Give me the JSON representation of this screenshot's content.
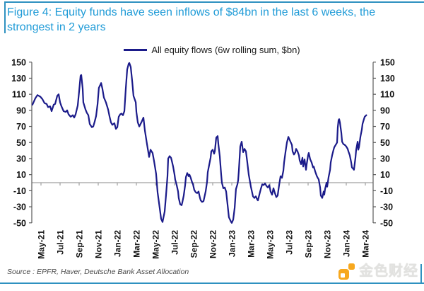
{
  "header": {
    "title": "Figure 4: Equity funds have seen inflows of $84bn in the last 6 weeks, the strongest in 2 years"
  },
  "chart_data": {
    "type": "line",
    "title": "Figure 4: Equity funds have seen inflows of $84bn in the last 6 weeks, the strongest in 2 years",
    "legend": [
      {
        "label": "All equity flows (6w rolling sum, $bn)",
        "color": "#1b1b8a"
      }
    ],
    "legend_position": "top-center",
    "grid": "off",
    "x_axis": {
      "tick_labels": [
        "May-21",
        "Jul-21",
        "Sep-21",
        "Nov-21",
        "Jan-22",
        "Mar-22",
        "May-22",
        "Jul-22",
        "Sep-22",
        "Nov-22",
        "Jan-23",
        "Mar-23",
        "May-23",
        "Jul-23",
        "Sep-23",
        "Nov-23",
        "Jan-24",
        "Mar-24"
      ],
      "tick_positions_months": [
        0,
        2,
        4,
        6,
        8,
        10,
        12,
        14,
        16,
        18,
        20,
        22,
        24,
        26,
        28,
        30,
        32,
        34
      ],
      "label_rotation_deg": 90,
      "baseline_value": 0
    },
    "y_axis": {
      "ticks": [
        150,
        130,
        110,
        90,
        70,
        50,
        30,
        10,
        -10,
        -30,
        -50
      ],
      "range": [
        -50,
        150
      ],
      "sides": "both"
    },
    "series": [
      {
        "name": "All equity flows (6w rolling sum, $bn)",
        "color": "#1b1b8a",
        "x_unit": "months after May-21 tick",
        "points": [
          [
            -0.9,
            97
          ],
          [
            -0.7,
            102
          ],
          [
            -0.59,
            105
          ],
          [
            -0.37,
            109
          ],
          [
            -0.07,
            107
          ],
          [
            0.15,
            104
          ],
          [
            0.37,
            99
          ],
          [
            0.59,
            98
          ],
          [
            0.74,
            94
          ],
          [
            0.96,
            95
          ],
          [
            1.11,
            89
          ],
          [
            1.33,
            97
          ],
          [
            1.48,
            98
          ],
          [
            1.7,
            108
          ],
          [
            1.85,
            110
          ],
          [
            2,
            100
          ],
          [
            2.15,
            95
          ],
          [
            2.37,
            89
          ],
          [
            2.59,
            88
          ],
          [
            2.74,
            90
          ],
          [
            2.89,
            85
          ],
          [
            3.11,
            82
          ],
          [
            3.33,
            84
          ],
          [
            3.48,
            81
          ],
          [
            3.63,
            85
          ],
          [
            3.85,
            96
          ],
          [
            4,
            114
          ],
          [
            4.15,
            133
          ],
          [
            4.22,
            134
          ],
          [
            4.37,
            117
          ],
          [
            4.44,
            100
          ],
          [
            4.67,
            91
          ],
          [
            4.81,
            87
          ],
          [
            4.96,
            84
          ],
          [
            5.11,
            73
          ],
          [
            5.33,
            69
          ],
          [
            5.48,
            70
          ],
          [
            5.63,
            76
          ],
          [
            5.78,
            83
          ],
          [
            5.93,
            98
          ],
          [
            6.07,
            118
          ],
          [
            6.3,
            124
          ],
          [
            6.44,
            117
          ],
          [
            6.59,
            106
          ],
          [
            6.81,
            100
          ],
          [
            7.04,
            91
          ],
          [
            7.19,
            82
          ],
          [
            7.33,
            75
          ],
          [
            7.48,
            72
          ],
          [
            7.7,
            74
          ],
          [
            7.85,
            67
          ],
          [
            8,
            69
          ],
          [
            8.15,
            82
          ],
          [
            8.3,
            85
          ],
          [
            8.44,
            86
          ],
          [
            8.59,
            84
          ],
          [
            8.74,
            89
          ],
          [
            8.89,
            117
          ],
          [
            9.04,
            141
          ],
          [
            9.19,
            148
          ],
          [
            9.26,
            149
          ],
          [
            9.41,
            144
          ],
          [
            9.56,
            126
          ],
          [
            9.7,
            108
          ],
          [
            9.93,
            100
          ],
          [
            10,
            88
          ],
          [
            10.15,
            75
          ],
          [
            10.3,
            70
          ],
          [
            10.52,
            75
          ],
          [
            10.74,
            81
          ],
          [
            10.89,
            65
          ],
          [
            11.11,
            48
          ],
          [
            11.33,
            32
          ],
          [
            11.48,
            41
          ],
          [
            11.7,
            37
          ],
          [
            11.85,
            27
          ],
          [
            12.07,
            11
          ],
          [
            12.22,
            -12
          ],
          [
            12.44,
            -31
          ],
          [
            12.59,
            -45
          ],
          [
            12.74,
            -49
          ],
          [
            12.96,
            -36
          ],
          [
            13.11,
            -15
          ],
          [
            13.26,
            8
          ],
          [
            13.33,
            30
          ],
          [
            13.48,
            33
          ],
          [
            13.63,
            31
          ],
          [
            13.7,
            28
          ],
          [
            13.85,
            20
          ],
          [
            14,
            10
          ],
          [
            14.07,
            4
          ],
          [
            14.22,
            -3
          ],
          [
            14.37,
            -11
          ],
          [
            14.44,
            -19
          ],
          [
            14.59,
            -27
          ],
          [
            14.74,
            -28
          ],
          [
            14.81,
            -25
          ],
          [
            14.96,
            -16
          ],
          [
            15.11,
            -3
          ],
          [
            15.19,
            7
          ],
          [
            15.33,
            12
          ],
          [
            15.48,
            8
          ],
          [
            15.56,
            10
          ],
          [
            15.7,
            6
          ],
          [
            15.85,
            0
          ],
          [
            15.93,
            -2
          ],
          [
            16.07,
            -9
          ],
          [
            16.22,
            -12
          ],
          [
            16.37,
            -13
          ],
          [
            16.52,
            -11
          ],
          [
            16.67,
            -19
          ],
          [
            16.74,
            -22
          ],
          [
            16.89,
            -24
          ],
          [
            17.04,
            -23
          ],
          [
            17.11,
            -19
          ],
          [
            17.26,
            -11
          ],
          [
            17.41,
            1
          ],
          [
            17.48,
            13
          ],
          [
            17.63,
            22
          ],
          [
            17.78,
            31
          ],
          [
            17.85,
            39
          ],
          [
            18,
            41
          ],
          [
            18.15,
            36
          ],
          [
            18.22,
            39
          ],
          [
            18.37,
            56
          ],
          [
            18.52,
            58
          ],
          [
            18.59,
            48
          ],
          [
            18.74,
            33
          ],
          [
            18.89,
            10
          ],
          [
            18.96,
            0
          ],
          [
            19.11,
            -7
          ],
          [
            19.26,
            -6
          ],
          [
            19.41,
            -11
          ],
          [
            19.56,
            -28
          ],
          [
            19.7,
            -43
          ],
          [
            19.93,
            -49
          ],
          [
            20,
            -50
          ],
          [
            20.15,
            -46
          ],
          [
            20.3,
            -31
          ],
          [
            20.44,
            -8
          ],
          [
            20.59,
            -2
          ],
          [
            20.67,
            3
          ],
          [
            20.74,
            15
          ],
          [
            20.89,
            45
          ],
          [
            21.04,
            51
          ],
          [
            21.19,
            38
          ],
          [
            21.33,
            42
          ],
          [
            21.48,
            39
          ],
          [
            21.63,
            25
          ],
          [
            21.78,
            10
          ],
          [
            22,
            -5
          ],
          [
            22.22,
            -17
          ],
          [
            22.37,
            -19
          ],
          [
            22.52,
            -17
          ],
          [
            22.67,
            -21
          ],
          [
            22.74,
            -22
          ],
          [
            22.89,
            -15
          ],
          [
            23.04,
            -8
          ],
          [
            23.19,
            -2
          ],
          [
            23.33,
            -3
          ],
          [
            23.48,
            -1
          ],
          [
            23.63,
            -4
          ],
          [
            23.78,
            -6
          ],
          [
            23.93,
            -3
          ],
          [
            24.07,
            -11
          ],
          [
            24.22,
            -15
          ],
          [
            24.37,
            -7
          ],
          [
            24.52,
            -13
          ],
          [
            24.67,
            -18
          ],
          [
            24.81,
            -16
          ],
          [
            24.96,
            -3
          ],
          [
            25.11,
            8
          ],
          [
            25.26,
            6
          ],
          [
            25.41,
            15
          ],
          [
            25.48,
            25
          ],
          [
            25.63,
            38
          ],
          [
            25.78,
            50
          ],
          [
            25.93,
            57
          ],
          [
            26,
            55
          ],
          [
            26.15,
            51
          ],
          [
            26.3,
            47
          ],
          [
            26.37,
            39
          ],
          [
            26.52,
            35
          ],
          [
            26.67,
            38
          ],
          [
            26.74,
            42
          ],
          [
            26.89,
            39
          ],
          [
            27.04,
            34
          ],
          [
            27.11,
            28
          ],
          [
            27.26,
            23
          ],
          [
            27.41,
            31
          ],
          [
            27.48,
            20
          ],
          [
            27.63,
            29
          ],
          [
            27.78,
            16
          ],
          [
            27.85,
            23
          ],
          [
            28,
            34
          ],
          [
            28.07,
            37
          ],
          [
            28.22,
            29
          ],
          [
            28.37,
            25
          ],
          [
            28.52,
            19
          ],
          [
            28.59,
            20
          ],
          [
            28.74,
            14
          ],
          [
            28.89,
            9
          ],
          [
            28.96,
            7
          ],
          [
            29.11,
            4
          ],
          [
            29.26,
            -6
          ],
          [
            29.33,
            -16
          ],
          [
            29.48,
            -19
          ],
          [
            29.63,
            -11
          ],
          [
            29.7,
            -15
          ],
          [
            29.78,
            -8
          ],
          [
            29.93,
            0
          ],
          [
            30,
            -5
          ],
          [
            30.15,
            7
          ],
          [
            30.3,
            16
          ],
          [
            30.37,
            25
          ],
          [
            30.52,
            34
          ],
          [
            30.67,
            41
          ],
          [
            30.74,
            44
          ],
          [
            30.89,
            47
          ],
          [
            31.04,
            50
          ],
          [
            31.11,
            69
          ],
          [
            31.19,
            78
          ],
          [
            31.26,
            79
          ],
          [
            31.33,
            75
          ],
          [
            31.48,
            62
          ],
          [
            31.56,
            51
          ],
          [
            31.7,
            48
          ],
          [
            31.85,
            47
          ],
          [
            32,
            45
          ],
          [
            32.15,
            42
          ],
          [
            32.22,
            39
          ],
          [
            32.37,
            34
          ],
          [
            32.52,
            25
          ],
          [
            32.59,
            19
          ],
          [
            32.74,
            17
          ],
          [
            32.81,
            16
          ],
          [
            32.96,
            31
          ],
          [
            33.04,
            41
          ],
          [
            33.19,
            51
          ],
          [
            33.26,
            41
          ],
          [
            33.33,
            44
          ],
          [
            33.48,
            57
          ],
          [
            33.63,
            66
          ],
          [
            33.7,
            73
          ],
          [
            33.85,
            79
          ],
          [
            33.93,
            82
          ],
          [
            34.1,
            84
          ]
        ]
      }
    ],
    "last_value": 84
  },
  "footer": {
    "source": "Source : EPFR, Haver, Deutsche Bank Asset Allocation",
    "logo_text": "金色财经"
  },
  "colors": {
    "title_blue": "#1f9bd7",
    "frame_blue": "#2f91c0",
    "line_navy": "#1b1b8a",
    "axis_side_gray": "#595959",
    "axis_zero_gray": "#a0a0a0",
    "logo_orange": "#f7a81f"
  }
}
